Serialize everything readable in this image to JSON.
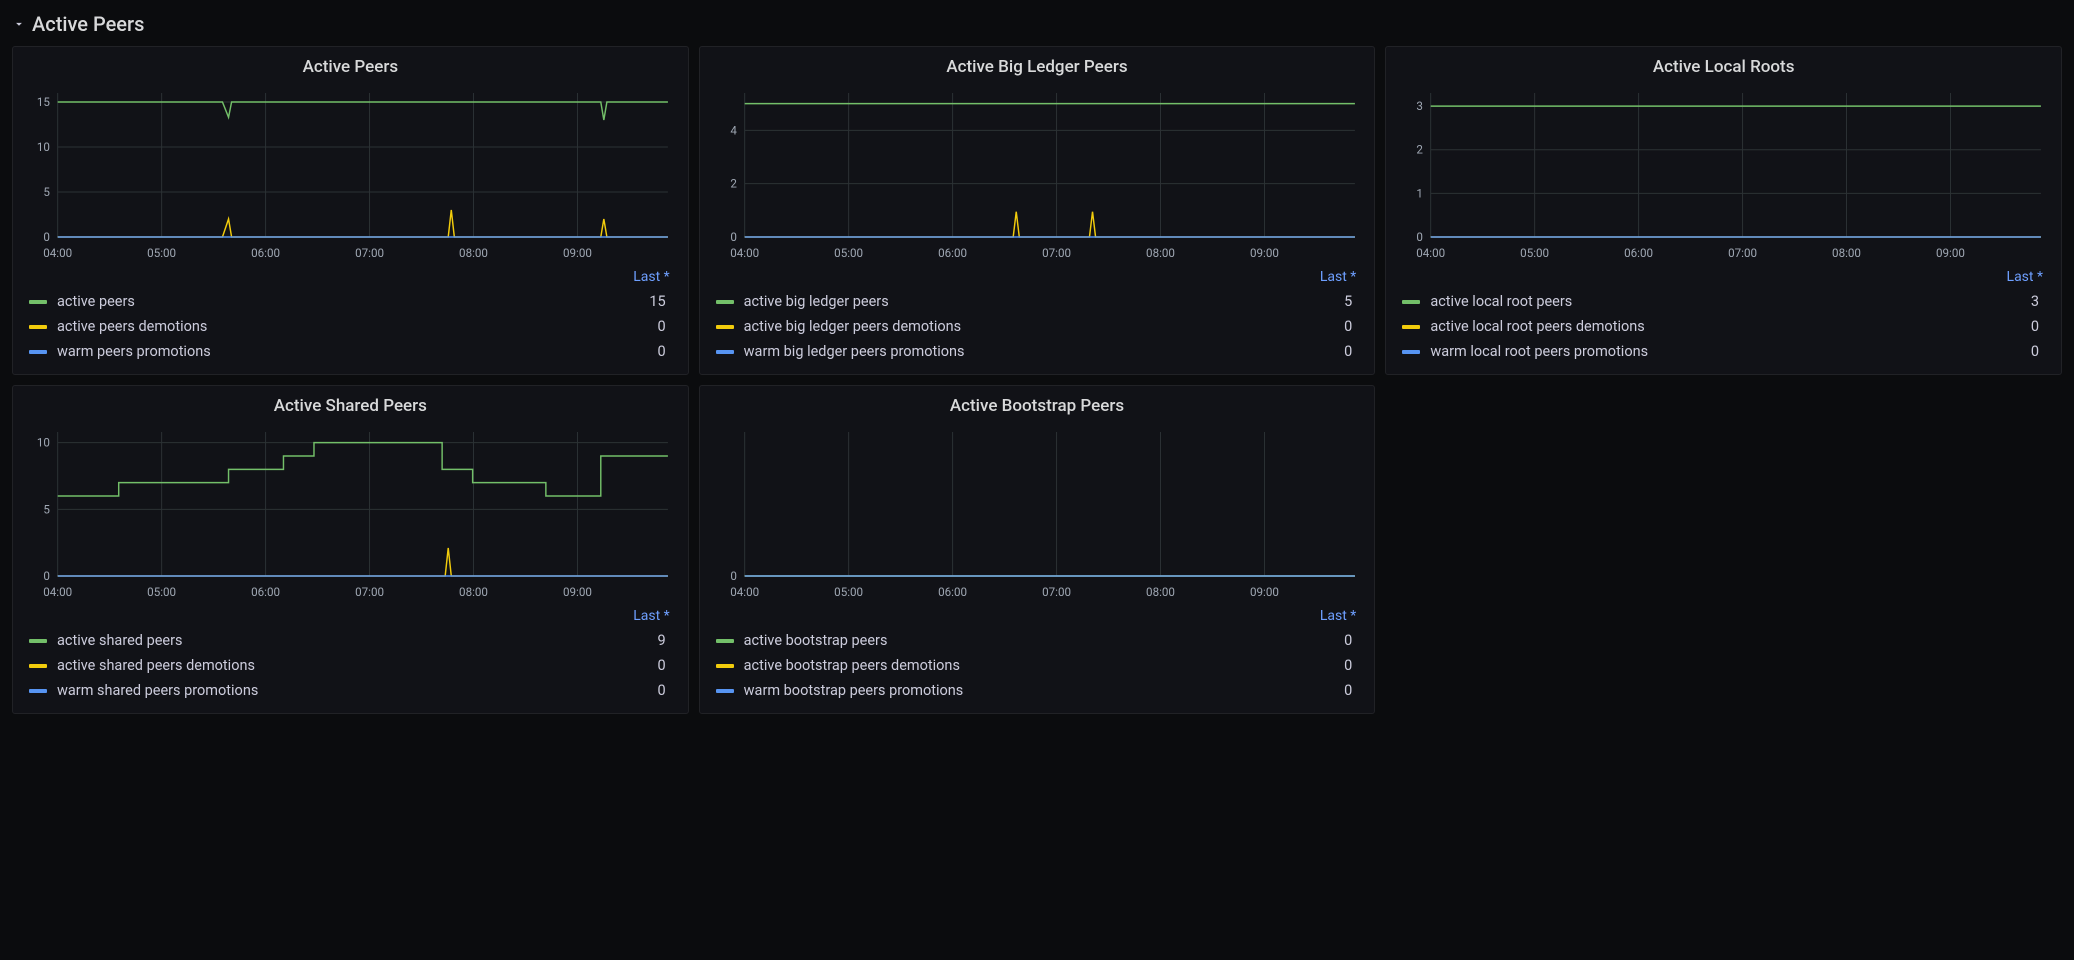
{
  "section": {
    "title": "Active Peers"
  },
  "time_axis": {
    "labels": [
      "04:00",
      "05:00",
      "06:00",
      "07:00",
      "08:00",
      "09:00"
    ],
    "count": 6
  },
  "legend_header": "Last *",
  "colors": {
    "bg": "#111217",
    "grid": "#2c3235",
    "axis": "#5a6171",
    "tick_text": "#9fa7b3",
    "header_link": "#6e9fff",
    "series_green": "#73bf69",
    "series_yellow": "#f2cc0c",
    "series_blue": "#5794f2"
  },
  "panels": [
    {
      "key": "active_peers",
      "title": "Active Peers",
      "y": {
        "ticks": [
          0,
          5,
          10,
          15
        ],
        "max": 16
      },
      "series": [
        {
          "label": "active peers",
          "color": "#73bf69",
          "last": 15,
          "points": [
            [
              0,
              15
            ],
            [
              0.27,
              15
            ],
            [
              0.28,
              13.3
            ],
            [
              0.285,
              15
            ],
            [
              0.89,
              15
            ],
            [
              0.895,
              13
            ],
            [
              0.9,
              15
            ],
            [
              1,
              15
            ]
          ]
        },
        {
          "label": "active peers demotions",
          "color": "#f2cc0c",
          "last": 0,
          "points": [
            [
              0,
              0
            ],
            [
              0.27,
              0
            ],
            [
              0.28,
              2
            ],
            [
              0.285,
              0
            ],
            [
              0.64,
              0
            ],
            [
              0.645,
              3
            ],
            [
              0.65,
              0
            ],
            [
              0.89,
              0
            ],
            [
              0.895,
              2
            ],
            [
              0.9,
              0
            ],
            [
              1,
              0
            ]
          ]
        },
        {
          "label": "warm peers promotions",
          "color": "#5794f2",
          "last": 0,
          "points": [
            [
              0,
              0
            ],
            [
              1,
              0
            ]
          ]
        }
      ]
    },
    {
      "key": "active_big_ledger",
      "title": "Active Big Ledger Peers",
      "y": {
        "ticks": [
          0,
          2,
          4
        ],
        "max": 5.4
      },
      "series": [
        {
          "label": "active big ledger peers",
          "color": "#73bf69",
          "last": 5,
          "points": [
            [
              0,
              5
            ],
            [
              1,
              5
            ]
          ]
        },
        {
          "label": "active big ledger peers demotions",
          "color": "#f2cc0c",
          "last": 0,
          "points": [
            [
              0,
              0
            ],
            [
              0.44,
              0
            ],
            [
              0.445,
              0.95
            ],
            [
              0.45,
              0
            ],
            [
              0.565,
              0
            ],
            [
              0.57,
              0.95
            ],
            [
              0.575,
              0
            ],
            [
              1,
              0
            ]
          ]
        },
        {
          "label": "warm big ledger peers promotions",
          "color": "#5794f2",
          "last": 0,
          "points": [
            [
              0,
              0
            ],
            [
              1,
              0
            ]
          ]
        }
      ]
    },
    {
      "key": "active_local_roots",
      "title": "Active Local Roots",
      "y": {
        "ticks": [
          0,
          1,
          2,
          3
        ],
        "max": 3.3
      },
      "series": [
        {
          "label": "active local root peers",
          "color": "#73bf69",
          "last": 3,
          "points": [
            [
              0,
              3
            ],
            [
              1,
              3
            ]
          ]
        },
        {
          "label": "active local root peers demotions",
          "color": "#f2cc0c",
          "last": 0,
          "points": [
            [
              0,
              0
            ],
            [
              1,
              0
            ]
          ]
        },
        {
          "label": "warm local root peers promotions",
          "color": "#5794f2",
          "last": 0,
          "points": [
            [
              0,
              0
            ],
            [
              1,
              0
            ]
          ]
        }
      ]
    },
    {
      "key": "active_shared",
      "title": "Active Shared Peers",
      "y": {
        "ticks": [
          0,
          5,
          10
        ],
        "max": 10.8
      },
      "series": [
        {
          "label": "active shared peers",
          "color": "#73bf69",
          "last": 9,
          "points": [
            [
              0,
              6
            ],
            [
              0.1,
              6
            ],
            [
              0.1,
              7
            ],
            [
              0.28,
              7
            ],
            [
              0.28,
              8
            ],
            [
              0.37,
              8
            ],
            [
              0.37,
              9
            ],
            [
              0.42,
              9
            ],
            [
              0.42,
              10
            ],
            [
              0.63,
              10
            ],
            [
              0.63,
              8
            ],
            [
              0.68,
              8
            ],
            [
              0.68,
              7
            ],
            [
              0.8,
              7
            ],
            [
              0.8,
              6
            ],
            [
              0.89,
              6
            ],
            [
              0.89,
              9
            ],
            [
              1,
              9
            ]
          ]
        },
        {
          "label": "active shared peers demotions",
          "color": "#f2cc0c",
          "last": 0,
          "points": [
            [
              0,
              0
            ],
            [
              0.635,
              0
            ],
            [
              0.64,
              2.1
            ],
            [
              0.645,
              0
            ],
            [
              1,
              0
            ]
          ]
        },
        {
          "label": "warm shared peers promotions",
          "color": "#5794f2",
          "last": 0,
          "points": [
            [
              0,
              0
            ],
            [
              1,
              0
            ]
          ]
        }
      ]
    },
    {
      "key": "active_bootstrap",
      "title": "Active Bootstrap Peers",
      "y": {
        "ticks": [
          0
        ],
        "max": 1
      },
      "series": [
        {
          "label": "active bootstrap peers",
          "color": "#73bf69",
          "last": 0,
          "points": [
            [
              0,
              0
            ],
            [
              1,
              0
            ]
          ]
        },
        {
          "label": "active bootstrap peers demotions",
          "color": "#f2cc0c",
          "last": 0,
          "points": [
            [
              0,
              0
            ],
            [
              1,
              0
            ]
          ]
        },
        {
          "label": "warm bootstrap peers promotions",
          "color": "#5794f2",
          "last": 0,
          "points": [
            [
              0,
              0
            ],
            [
              1,
              0
            ]
          ]
        }
      ]
    }
  ]
}
